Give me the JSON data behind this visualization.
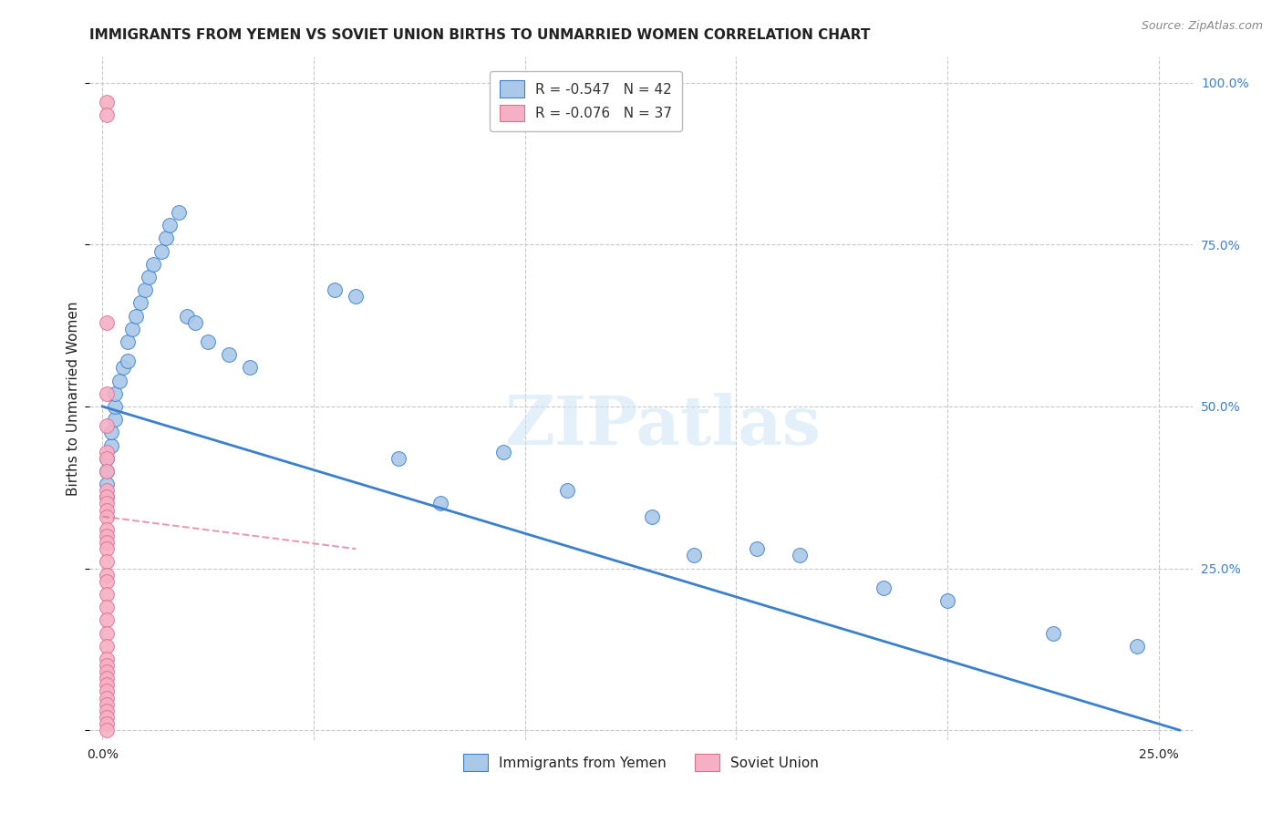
{
  "title": "IMMIGRANTS FROM YEMEN VS SOVIET UNION BIRTHS TO UNMARRIED WOMEN CORRELATION CHART",
  "source": "Source: ZipAtlas.com",
  "ylabel": "Births to Unmarried Women",
  "watermark": "ZIPatlas",
  "legend_line1": "R = -0.547   N = 42",
  "legend_line2": "R = -0.076   N = 37",
  "bottom_legend": [
    "Immigrants from Yemen",
    "Soviet Union"
  ],
  "xlim": [
    -0.003,
    0.258
  ],
  "ylim": [
    -0.015,
    1.04
  ],
  "xticks": [
    0.0,
    0.05,
    0.1,
    0.15,
    0.2,
    0.25
  ],
  "xtick_labels": [
    "0.0%",
    "",
    "",
    "",
    "",
    "25.0%"
  ],
  "yticks": [
    0.0,
    0.25,
    0.5,
    0.75,
    1.0
  ],
  "right_ytick_labels": [
    "",
    "25.0%",
    "50.0%",
    "75.0%",
    "100.0%"
  ],
  "blue_scatter_x": [
    0.001,
    0.001,
    0.001,
    0.001,
    0.002,
    0.002,
    0.003,
    0.003,
    0.003,
    0.004,
    0.005,
    0.006,
    0.006,
    0.007,
    0.008,
    0.009,
    0.01,
    0.011,
    0.012,
    0.014,
    0.015,
    0.016,
    0.018,
    0.02,
    0.022,
    0.025,
    0.03,
    0.035,
    0.055,
    0.06,
    0.07,
    0.08,
    0.095,
    0.11,
    0.13,
    0.14,
    0.155,
    0.165,
    0.185,
    0.2,
    0.225,
    0.245
  ],
  "blue_scatter_y": [
    0.42,
    0.4,
    0.38,
    0.36,
    0.44,
    0.46,
    0.48,
    0.5,
    0.52,
    0.54,
    0.56,
    0.57,
    0.6,
    0.62,
    0.64,
    0.66,
    0.68,
    0.7,
    0.72,
    0.74,
    0.76,
    0.78,
    0.8,
    0.64,
    0.63,
    0.6,
    0.58,
    0.56,
    0.68,
    0.67,
    0.42,
    0.35,
    0.43,
    0.37,
    0.33,
    0.27,
    0.28,
    0.27,
    0.22,
    0.2,
    0.15,
    0.13
  ],
  "pink_scatter_x": [
    0.001,
    0.001,
    0.001,
    0.001,
    0.001,
    0.001,
    0.001,
    0.001,
    0.001,
    0.001,
    0.001,
    0.001,
    0.001,
    0.001,
    0.001,
    0.001,
    0.001,
    0.001,
    0.001,
    0.001,
    0.001,
    0.001,
    0.001,
    0.001,
    0.001,
    0.001,
    0.001,
    0.001,
    0.001,
    0.001,
    0.001,
    0.001,
    0.001,
    0.001,
    0.001,
    0.001,
    0.001
  ],
  "pink_scatter_y": [
    0.97,
    0.95,
    0.63,
    0.52,
    0.47,
    0.43,
    0.42,
    0.4,
    0.37,
    0.36,
    0.35,
    0.34,
    0.33,
    0.31,
    0.3,
    0.29,
    0.28,
    0.26,
    0.24,
    0.23,
    0.21,
    0.19,
    0.17,
    0.15,
    0.13,
    0.11,
    0.1,
    0.09,
    0.08,
    0.07,
    0.06,
    0.05,
    0.04,
    0.03,
    0.02,
    0.01,
    0.0
  ],
  "blue_line_x": [
    0.0,
    0.255
  ],
  "blue_line_y": [
    0.5,
    0.0
  ],
  "pink_line_x": [
    0.0,
    0.06
  ],
  "pink_line_y": [
    0.33,
    0.28
  ],
  "blue_scatter_color": "#aac8e8",
  "pink_scatter_color": "#f5b0c5",
  "blue_line_color": "#3a80cc",
  "pink_line_color": "#e07090",
  "pink_line_style": "solid",
  "grid_color": "#c8c8c8",
  "right_ytick_color": "#3a80cc",
  "background_color": "#ffffff",
  "title_color": "#222222",
  "source_color": "#888888",
  "legend_text_color": "#333333",
  "legend_r_color": "#3a80cc"
}
